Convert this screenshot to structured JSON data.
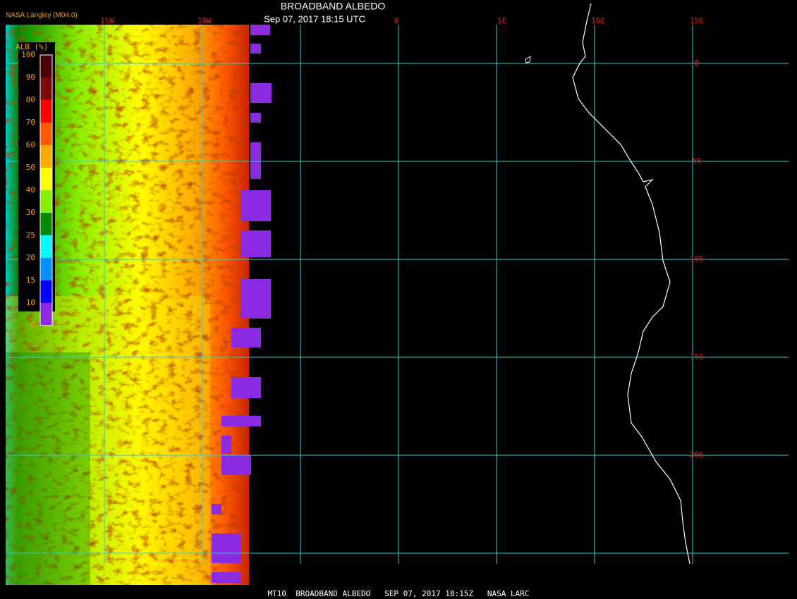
{
  "header": {
    "title": "BROADBAND ALBEDO",
    "subtitle": "Sep 07, 2017 18:15 UTC",
    "credit": "NASA Langley (M04.0)"
  },
  "legend": {
    "label": "ALB (%)",
    "ticks": [
      100,
      90,
      80,
      70,
      60,
      50,
      40,
      30,
      25,
      20,
      15,
      10,
      0
    ],
    "colors": [
      "#4a0000",
      "#7a0a0a",
      "#ff0000",
      "#ff5a00",
      "#ffaa00",
      "#ffff00",
      "#88ee00",
      "#008800",
      "#00ffff",
      "#0090ff",
      "#0000ff",
      "#8a2be2"
    ]
  },
  "grid": {
    "lon_labels": [
      "15W",
      "10W",
      "0",
      "5E",
      "10E",
      "15E"
    ],
    "lat_labels": [
      "0",
      "5S",
      "10S",
      "15S",
      "20S"
    ]
  },
  "footer": "MT10  BROADBAND ALBEDO   SEP 07, 2017 18:15Z   NASA LARC"
}
